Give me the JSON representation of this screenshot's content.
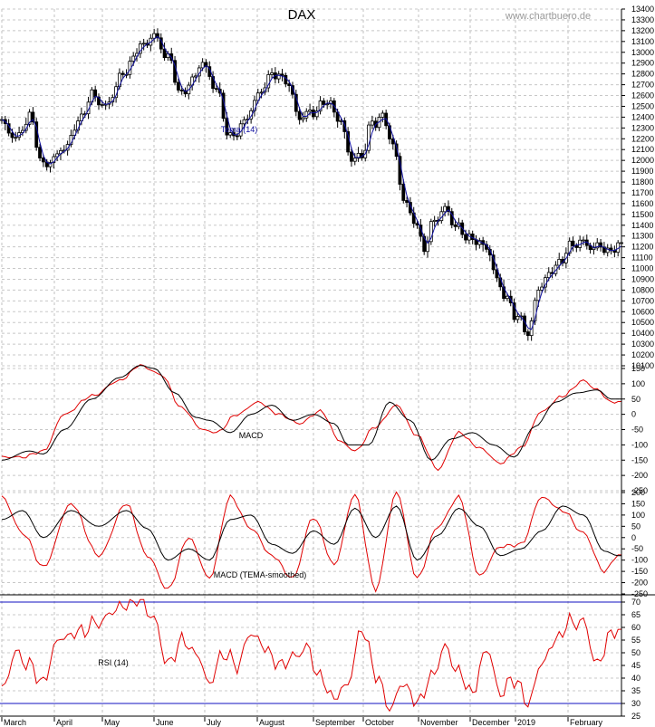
{
  "chart_data": {
    "type": "line",
    "title": "DAX",
    "watermark": "www.chartbuero.de",
    "x_months": [
      "March",
      "April",
      "May",
      "June",
      "July",
      "August",
      "September",
      "October",
      "November",
      "December",
      "2019",
      "February"
    ],
    "date_range": [
      "2018-03-01",
      "2019-02-12"
    ],
    "grid": true,
    "colors": {
      "price": "#000000",
      "tema": "#1010a0",
      "macd": "#000000",
      "signal": "#e00000",
      "rsi": "#e00000",
      "rsi_levels": "#1010c0"
    },
    "panels": [
      {
        "name": "price",
        "indicator_label": "Tema (14)",
        "ylim": [
          10100,
          13400
        ],
        "yticks": [
          10100,
          10200,
          10300,
          10400,
          10500,
          10600,
          10700,
          10800,
          10900,
          11000,
          11100,
          11200,
          11300,
          11400,
          11500,
          11600,
          11700,
          11800,
          11900,
          12000,
          12100,
          12200,
          12300,
          12400,
          12500,
          12600,
          12700,
          12800,
          12900,
          13000,
          13100,
          13200,
          13300,
          13400
        ],
        "series_anchors": [
          [
            0,
            12350
          ],
          [
            4,
            12200
          ],
          [
            8,
            12400
          ],
          [
            12,
            11950
          ],
          [
            18,
            12100
          ],
          [
            22,
            12350
          ],
          [
            26,
            12600
          ],
          [
            30,
            12500
          ],
          [
            35,
            12800
          ],
          [
            40,
            13050
          ],
          [
            44,
            13150
          ],
          [
            48,
            12950
          ],
          [
            52,
            12600
          ],
          [
            55,
            12750
          ],
          [
            58,
            12900
          ],
          [
            62,
            12650
          ],
          [
            66,
            12200
          ],
          [
            70,
            12350
          ],
          [
            74,
            12600
          ],
          [
            78,
            12800
          ],
          [
            82,
            12750
          ],
          [
            86,
            12400
          ],
          [
            90,
            12450
          ],
          [
            94,
            12550
          ],
          [
            98,
            12350
          ],
          [
            101,
            12000
          ],
          [
            104,
            12050
          ],
          [
            107,
            12350
          ],
          [
            110,
            12400
          ],
          [
            113,
            12150
          ],
          [
            116,
            11650
          ],
          [
            119,
            11450
          ],
          [
            122,
            11200
          ],
          [
            125,
            11450
          ],
          [
            128,
            11550
          ],
          [
            131,
            11400
          ],
          [
            134,
            11300
          ],
          [
            137,
            11250
          ],
          [
            140,
            11200
          ],
          [
            143,
            10900
          ],
          [
            146,
            10700
          ],
          [
            149,
            10550
          ],
          [
            152,
            10400
          ],
          [
            155,
            10800
          ],
          [
            158,
            10950
          ],
          [
            161,
            11050
          ],
          [
            164,
            11200
          ],
          [
            167,
            11250
          ],
          [
            170,
            11200
          ],
          [
            173,
            11200
          ],
          [
            176,
            11150
          ],
          [
            178,
            11220
          ]
        ]
      },
      {
        "name": "MACD",
        "label": "MACD",
        "ylim": [
          -250,
          150
        ],
        "yticks": [
          -250,
          -200,
          -150,
          -100,
          -50,
          0,
          50,
          100,
          150
        ],
        "macd_anchors": [
          [
            0,
            -150
          ],
          [
            8,
            -120
          ],
          [
            12,
            -130
          ],
          [
            18,
            -50
          ],
          [
            26,
            50
          ],
          [
            34,
            120
          ],
          [
            40,
            160
          ],
          [
            44,
            150
          ],
          [
            50,
            70
          ],
          [
            56,
            -10
          ],
          [
            60,
            -20
          ],
          [
            66,
            -60
          ],
          [
            72,
            0
          ],
          [
            78,
            30
          ],
          [
            84,
            -20
          ],
          [
            90,
            0
          ],
          [
            96,
            -30
          ],
          [
            100,
            -100
          ],
          [
            106,
            -100
          ],
          [
            112,
            40
          ],
          [
            118,
            -20
          ],
          [
            124,
            -150
          ],
          [
            130,
            -80
          ],
          [
            136,
            -60
          ],
          [
            142,
            -100
          ],
          [
            148,
            -140
          ],
          [
            154,
            -40
          ],
          [
            160,
            40
          ],
          [
            166,
            70
          ],
          [
            172,
            80
          ],
          [
            176,
            50
          ]
        ],
        "signal_anchors": [
          [
            0,
            -140
          ],
          [
            6,
            -140
          ],
          [
            12,
            -120
          ],
          [
            18,
            0
          ],
          [
            26,
            60
          ],
          [
            34,
            110
          ],
          [
            40,
            160
          ],
          [
            46,
            130
          ],
          [
            52,
            20
          ],
          [
            58,
            -50
          ],
          [
            62,
            -60
          ],
          [
            68,
            0
          ],
          [
            74,
            40
          ],
          [
            80,
            0
          ],
          [
            86,
            -30
          ],
          [
            92,
            10
          ],
          [
            98,
            -90
          ],
          [
            102,
            -120
          ],
          [
            108,
            -40
          ],
          [
            114,
            30
          ],
          [
            120,
            -70
          ],
          [
            126,
            -180
          ],
          [
            132,
            -60
          ],
          [
            138,
            -110
          ],
          [
            144,
            -160
          ],
          [
            150,
            -110
          ],
          [
            156,
            10
          ],
          [
            162,
            60
          ],
          [
            168,
            110
          ],
          [
            172,
            80
          ],
          [
            176,
            40
          ]
        ]
      },
      {
        "name": "MACD (TEMA-smoothed)",
        "label": "MACD (TEMA-smoothed)",
        "ylim": [
          -250,
          200
        ],
        "yticks": [
          -250,
          -200,
          -150,
          -100,
          -50,
          0,
          50,
          100,
          150,
          200
        ],
        "macd_anchors": [
          [
            0,
            80
          ],
          [
            6,
            120
          ],
          [
            12,
            0
          ],
          [
            20,
            120
          ],
          [
            28,
            50
          ],
          [
            36,
            120
          ],
          [
            42,
            40
          ],
          [
            48,
            -100
          ],
          [
            54,
            -50
          ],
          [
            60,
            -100
          ],
          [
            66,
            80
          ],
          [
            72,
            100
          ],
          [
            78,
            -30
          ],
          [
            84,
            -70
          ],
          [
            90,
            30
          ],
          [
            96,
            -30
          ],
          [
            102,
            130
          ],
          [
            108,
            0
          ],
          [
            114,
            140
          ],
          [
            120,
            -100
          ],
          [
            126,
            10
          ],
          [
            132,
            130
          ],
          [
            138,
            50
          ],
          [
            144,
            -80
          ],
          [
            150,
            -50
          ],
          [
            156,
            30
          ],
          [
            162,
            140
          ],
          [
            168,
            100
          ],
          [
            174,
            -60
          ],
          [
            178,
            -80
          ]
        ],
        "signal_anchors": [
          [
            0,
            180
          ],
          [
            6,
            20
          ],
          [
            12,
            -130
          ],
          [
            20,
            150
          ],
          [
            28,
            -80
          ],
          [
            36,
            150
          ],
          [
            42,
            -80
          ],
          [
            48,
            -230
          ],
          [
            54,
            0
          ],
          [
            60,
            -180
          ],
          [
            66,
            180
          ],
          [
            72,
            40
          ],
          [
            78,
            -80
          ],
          [
            84,
            -180
          ],
          [
            90,
            90
          ],
          [
            96,
            -120
          ],
          [
            102,
            190
          ],
          [
            108,
            -230
          ],
          [
            114,
            200
          ],
          [
            120,
            -180
          ],
          [
            126,
            50
          ],
          [
            132,
            180
          ],
          [
            138,
            -170
          ],
          [
            144,
            -40
          ],
          [
            150,
            -30
          ],
          [
            156,
            180
          ],
          [
            162,
            120
          ],
          [
            168,
            20
          ],
          [
            174,
            -150
          ],
          [
            178,
            -80
          ]
        ]
      },
      {
        "name": "RSI",
        "label": "RSI (14)",
        "ylim": [
          25,
          70
        ],
        "yticks": [
          25,
          30,
          35,
          40,
          45,
          50,
          55,
          60,
          65,
          70
        ],
        "levels": [
          30,
          70
        ],
        "rsi_anchors": [
          [
            0,
            35
          ],
          [
            4,
            50
          ],
          [
            8,
            45
          ],
          [
            12,
            38
          ],
          [
            16,
            55
          ],
          [
            22,
            58
          ],
          [
            28,
            62
          ],
          [
            34,
            68
          ],
          [
            40,
            71
          ],
          [
            44,
            63
          ],
          [
            48,
            45
          ],
          [
            52,
            55
          ],
          [
            56,
            50
          ],
          [
            60,
            38
          ],
          [
            64,
            50
          ],
          [
            68,
            45
          ],
          [
            72,
            58
          ],
          [
            76,
            52
          ],
          [
            80,
            45
          ],
          [
            84,
            48
          ],
          [
            88,
            52
          ],
          [
            92,
            40
          ],
          [
            96,
            32
          ],
          [
            100,
            38
          ],
          [
            104,
            60
          ],
          [
            108,
            42
          ],
          [
            112,
            28
          ],
          [
            116,
            38
          ],
          [
            120,
            30
          ],
          [
            124,
            40
          ],
          [
            128,
            52
          ],
          [
            132,
            42
          ],
          [
            136,
            34
          ],
          [
            140,
            52
          ],
          [
            144,
            34
          ],
          [
            148,
            40
          ],
          [
            152,
            30
          ],
          [
            156,
            46
          ],
          [
            160,
            55
          ],
          [
            164,
            62
          ],
          [
            168,
            62
          ],
          [
            172,
            45
          ],
          [
            176,
            58
          ]
        ]
      }
    ]
  }
}
